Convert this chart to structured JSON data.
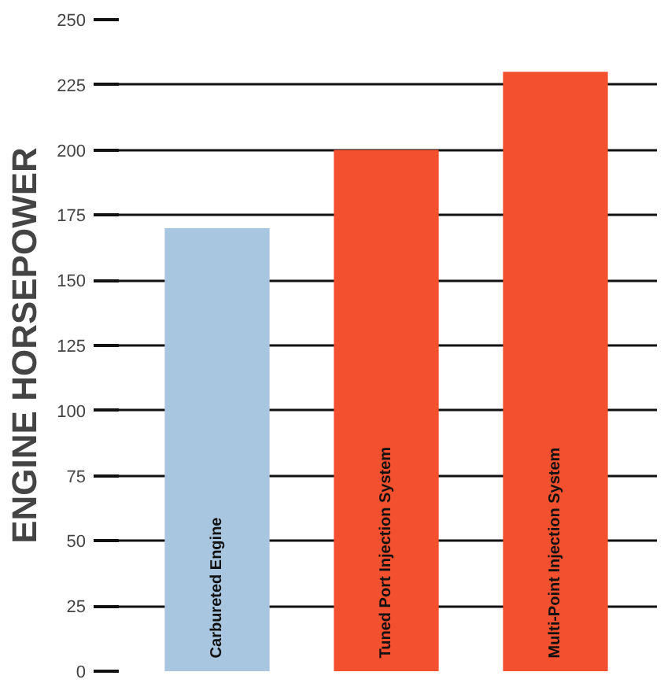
{
  "chart_data": {
    "type": "bar",
    "ylabel": "ENGINE HORSEPOWER",
    "categories": [
      "Carbureted Engine",
      "Tuned Port Injection System",
      "Multi-Point Injection System"
    ],
    "values": [
      170,
      200,
      230
    ],
    "colors": [
      "#a9c6e0",
      "#f2502e",
      "#f2502e"
    ],
    "ylim": [
      0,
      250
    ],
    "yticks": [
      0,
      25,
      50,
      75,
      100,
      125,
      150,
      175,
      200,
      225,
      250
    ],
    "grid": "y"
  }
}
